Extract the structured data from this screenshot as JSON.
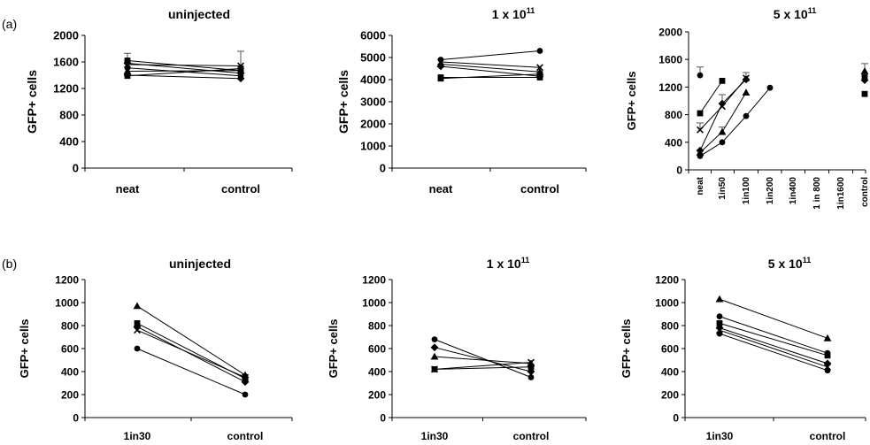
{
  "panel_labels": [
    "(a)",
    "(b)"
  ],
  "chart_data": [
    {
      "type": "line",
      "panel": "(a)",
      "title_base": "uninjected",
      "title_sup": "",
      "ylabel": "GFP+ cells",
      "categories": [
        "neat",
        "control"
      ],
      "ylim": [
        0,
        2000
      ],
      "yticks": [
        0,
        400,
        800,
        1200,
        1600,
        2000
      ],
      "series": [
        {
          "marker": "square",
          "values": [
            1620,
            1470
          ]
        },
        {
          "marker": "diamond",
          "values": [
            1580,
            1430
          ]
        },
        {
          "marker": "cross",
          "values": [
            1560,
            1540
          ]
        },
        {
          "marker": "circle",
          "values": [
            1510,
            1390
          ]
        },
        {
          "marker": "triangle",
          "values": [
            1460,
            1470
          ]
        },
        {
          "marker": "square",
          "values": [
            1390,
            1500
          ]
        },
        {
          "marker": "diamond",
          "values": [
            1400,
            1350
          ]
        }
      ],
      "error_bars": [
        {
          "category": "neat",
          "center": 1620,
          "upper": 1730
        },
        {
          "category": "control",
          "center": 1500,
          "upper": 1760
        }
      ]
    },
    {
      "type": "line",
      "panel": "(a)",
      "title_base": "1 x 10",
      "title_sup": "11",
      "ylabel": "GFP+ cells",
      "categories": [
        "neat",
        "control"
      ],
      "ylim": [
        0,
        6000
      ],
      "yticks": [
        0,
        1000,
        2000,
        3000,
        4000,
        5000,
        6000
      ],
      "series": [
        {
          "marker": "circle",
          "values": [
            4900,
            5300
          ]
        },
        {
          "marker": "cross",
          "values": [
            4800,
            4550
          ]
        },
        {
          "marker": "triangle",
          "values": [
            4700,
            4350
          ]
        },
        {
          "marker": "diamond",
          "values": [
            4600,
            4150
          ]
        },
        {
          "marker": "square",
          "values": [
            4100,
            4100
          ]
        },
        {
          "marker": "square",
          "values": [
            4050,
            4250
          ]
        }
      ]
    },
    {
      "type": "line",
      "panel": "(a)",
      "title_base": "5 x 10",
      "title_sup": "11",
      "ylabel": "GFP+ cells",
      "categories": [
        "neat",
        "1in50",
        "1in100",
        "1in200",
        "1in400",
        "1 in 800",
        "1in1600",
        "control"
      ],
      "ylim": [
        0,
        2000
      ],
      "yticks": [
        0,
        400,
        800,
        1200,
        1600,
        2000
      ],
      "series": [
        {
          "marker": "square",
          "values": [
            820,
            1290,
            null,
            null,
            null,
            null,
            null,
            null
          ]
        },
        {
          "marker": "diamond",
          "values": [
            280,
            960,
            1310,
            null,
            null,
            null,
            null,
            null
          ]
        },
        {
          "marker": "circle",
          "values": [
            200,
            400,
            780,
            1190,
            null,
            null,
            null,
            null
          ]
        },
        {
          "marker": "triangle",
          "values": [
            250,
            550,
            1120,
            null,
            null,
            null,
            null,
            null
          ]
        },
        {
          "marker": "cross",
          "values": [
            580,
            920,
            1330,
            null,
            null,
            null,
            null,
            null
          ]
        }
      ],
      "extra_points": [
        {
          "category": "neat",
          "value": 1370,
          "marker": "circle"
        },
        {
          "category": "control",
          "value": 1340,
          "marker": "square"
        },
        {
          "category": "control",
          "value": 1430,
          "marker": "triangle"
        },
        {
          "category": "control",
          "value": 1300,
          "marker": "diamond"
        },
        {
          "category": "control",
          "value": 1100,
          "marker": "square"
        }
      ],
      "error_bars": [
        {
          "category": "neat",
          "center": 1370,
          "upper": 1490
        },
        {
          "category": "neat",
          "center": 580,
          "upper": 680
        },
        {
          "category": "1in50",
          "center": 960,
          "upper": 1090
        },
        {
          "category": "1in50",
          "center": 550,
          "upper": 620
        },
        {
          "category": "1in100",
          "center": 1310,
          "upper": 1410
        },
        {
          "category": "control",
          "center": 1430,
          "upper": 1540
        }
      ]
    },
    {
      "type": "line",
      "panel": "(b)",
      "title_base": "uninjected",
      "title_sup": "",
      "ylabel": "GFP+ cells",
      "categories": [
        "1in30",
        "control"
      ],
      "ylim": [
        0,
        1200
      ],
      "yticks": [
        0,
        200,
        400,
        600,
        800,
        1000,
        1200
      ],
      "series": [
        {
          "marker": "triangle",
          "values": [
            970,
            370
          ]
        },
        {
          "marker": "square",
          "values": [
            820,
            340
          ]
        },
        {
          "marker": "diamond",
          "values": [
            790,
            310
          ]
        },
        {
          "marker": "cross",
          "values": [
            760,
            350
          ]
        },
        {
          "marker": "circle",
          "values": [
            600,
            200
          ]
        }
      ]
    },
    {
      "type": "line",
      "panel": "(b)",
      "title_base": "1 x 10",
      "title_sup": "11",
      "ylabel": "GFP+ cells",
      "categories": [
        "1in30",
        "control"
      ],
      "ylim": [
        0,
        1200
      ],
      "yticks": [
        0,
        200,
        400,
        600,
        800,
        1000,
        1200
      ],
      "series": [
        {
          "marker": "circle",
          "values": [
            680,
            350
          ]
        },
        {
          "marker": "diamond",
          "values": [
            610,
            400
          ]
        },
        {
          "marker": "triangle",
          "values": [
            530,
            470
          ]
        },
        {
          "marker": "square",
          "values": [
            420,
            440
          ]
        },
        {
          "marker": "cross",
          "values": [
            420,
            480
          ]
        }
      ]
    },
    {
      "type": "line",
      "panel": "(b)",
      "title_base": "5 x 10",
      "title_sup": "11",
      "ylabel": "GFP+ cells",
      "categories": [
        "1in30",
        "control"
      ],
      "ylim": [
        0,
        1200
      ],
      "yticks": [
        0,
        200,
        400,
        600,
        800,
        1000,
        1200
      ],
      "series": [
        {
          "marker": "triangle",
          "values": [
            1030,
            690
          ]
        },
        {
          "marker": "circle",
          "values": [
            880,
            560
          ]
        },
        {
          "marker": "square",
          "values": [
            820,
            540
          ]
        },
        {
          "marker": "diamond",
          "values": [
            780,
            470
          ]
        },
        {
          "marker": "cross",
          "values": [
            760,
            440
          ]
        },
        {
          "marker": "circle",
          "values": [
            730,
            410
          ]
        }
      ]
    }
  ]
}
